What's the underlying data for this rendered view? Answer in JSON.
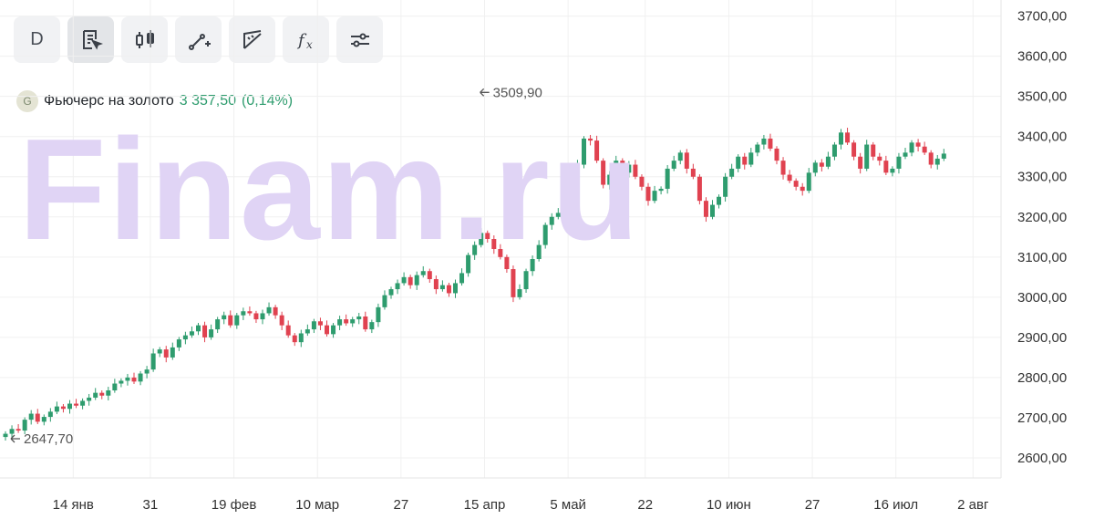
{
  "toolbar": {
    "items": [
      {
        "label": "D",
        "icon": "period-text"
      },
      {
        "label": "",
        "icon": "document-cursor-icon"
      },
      {
        "label": "",
        "icon": "candlestick-icon"
      },
      {
        "label": "",
        "icon": "line-plus-icon"
      },
      {
        "label": "",
        "icon": "ruler-icon"
      },
      {
        "label": "",
        "icon": "function-icon"
      },
      {
        "label": "",
        "icon": "sliders-icon"
      }
    ]
  },
  "legend": {
    "badge": "G",
    "name": "Фьючерс на золото",
    "price": "3 357,50",
    "change": "(0,14%)"
  },
  "watermark": "Finam.ru",
  "colors": {
    "up": "#2e9c6e",
    "down": "#e04250",
    "grid": "#f0f0f0",
    "axis_text": "#333333"
  },
  "chart_data": {
    "type": "candlestick",
    "ylim": [
      2550,
      3740
    ],
    "y_ticks": [
      2600,
      2700,
      2800,
      2900,
      3000,
      3100,
      3200,
      3300,
      3400,
      3500,
      3600,
      3700
    ],
    "y_tick_labels": [
      "2600,00",
      "2700,00",
      "2800,00",
      "2900,00",
      "3000,00",
      "3100,00",
      "3200,00",
      "3300,00",
      "3400,00",
      "3500,00",
      "3600,00",
      "3700,00"
    ],
    "x_tick_labels": [
      "14 янв",
      "31",
      "19 фев",
      "10 мар",
      "27",
      "15 апр",
      "5 май",
      "22",
      "10 июн",
      "27",
      "16 июл",
      "2 авг"
    ],
    "x_tick_bar_index": [
      6,
      18,
      31,
      44,
      57,
      70,
      83,
      95,
      108,
      121,
      134,
      146
    ],
    "annotations": [
      {
        "text": "3509,90",
        "bar_index": 73,
        "value": 3509.9
      },
      {
        "text": "2647,70",
        "bar_index": 0,
        "value": 2647.7
      }
    ],
    "closes": [
      2660,
      2672,
      2668,
      2695,
      2710,
      2690,
      2702,
      2715,
      2728,
      2722,
      2735,
      2730,
      2742,
      2750,
      2762,
      2755,
      2768,
      2785,
      2792,
      2800,
      2790,
      2810,
      2820,
      2860,
      2870,
      2850,
      2875,
      2895,
      2905,
      2915,
      2930,
      2900,
      2920,
      2945,
      2955,
      2930,
      2955,
      2965,
      2960,
      2945,
      2960,
      2975,
      2955,
      2930,
      2905,
      2888,
      2910,
      2920,
      2940,
      2930,
      2908,
      2930,
      2945,
      2935,
      2945,
      2952,
      2920,
      2938,
      2975,
      3005,
      3020,
      3035,
      3050,
      3030,
      3055,
      3065,
      3045,
      3020,
      3030,
      3010,
      3035,
      3060,
      3105,
      3130,
      3160,
      3145,
      3120,
      3100,
      3070,
      3000,
      3020,
      3065,
      3095,
      3130,
      3180,
      3200,
      3210,
      3235,
      3300,
      3330,
      3395,
      3390,
      3340,
      3280,
      3305,
      3340,
      3310,
      3330,
      3300,
      3275,
      3240,
      3265,
      3270,
      3320,
      3340,
      3360,
      3320,
      3300,
      3240,
      3200,
      3230,
      3250,
      3300,
      3320,
      3350,
      3330,
      3360,
      3380,
      3395,
      3370,
      3340,
      3305,
      3290,
      3275,
      3265,
      3310,
      3335,
      3325,
      3350,
      3380,
      3410,
      3385,
      3350,
      3320,
      3380,
      3350,
      3340,
      3310,
      3320,
      3350,
      3360,
      3385,
      3375,
      3360,
      3330,
      3345,
      3357.5
    ]
  }
}
